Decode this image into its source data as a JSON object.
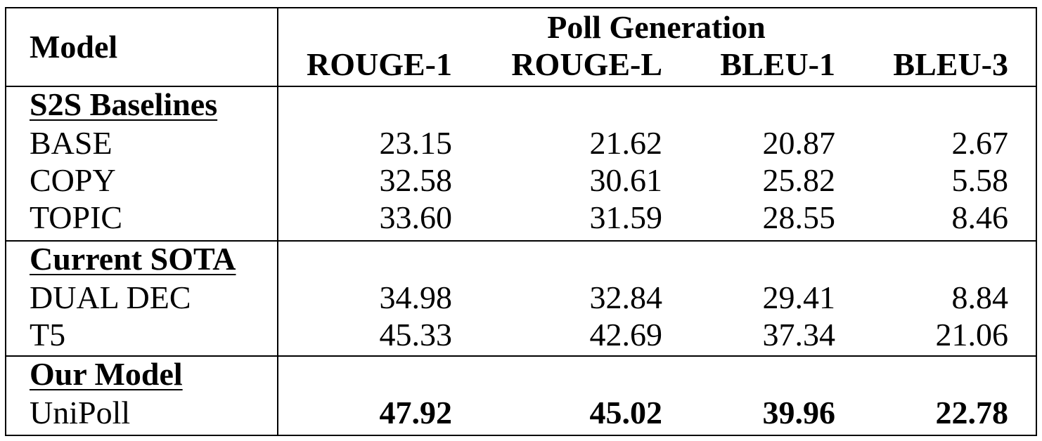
{
  "header": {
    "model_label": "Model",
    "group_label": "Poll Generation",
    "columns": [
      "ROUGE-1",
      "ROUGE-L",
      "BLEU-1",
      "BLEU-3"
    ]
  },
  "sections": [
    {
      "title": "S2S Baselines",
      "rows": [
        {
          "model": "BASE",
          "values": [
            "23.15",
            "21.62",
            "20.87",
            "2.67"
          ]
        },
        {
          "model": "COPY",
          "values": [
            "32.58",
            "30.61",
            "25.82",
            "5.58"
          ]
        },
        {
          "model": "TOPIC",
          "values": [
            "33.60",
            "31.59",
            "28.55",
            "8.46"
          ]
        }
      ]
    },
    {
      "title": "Current SOTA",
      "rows": [
        {
          "model": "DUAL DEC",
          "values": [
            "34.98",
            "32.84",
            "29.41",
            "8.84"
          ]
        },
        {
          "model": "T5",
          "values": [
            "45.33",
            "42.69",
            "37.34",
            "21.06"
          ]
        }
      ]
    },
    {
      "title": "Our Model",
      "rows": [
        {
          "model": "UniPoll",
          "values": [
            "47.92",
            "45.02",
            "39.96",
            "22.78"
          ],
          "bold": true
        }
      ]
    }
  ]
}
